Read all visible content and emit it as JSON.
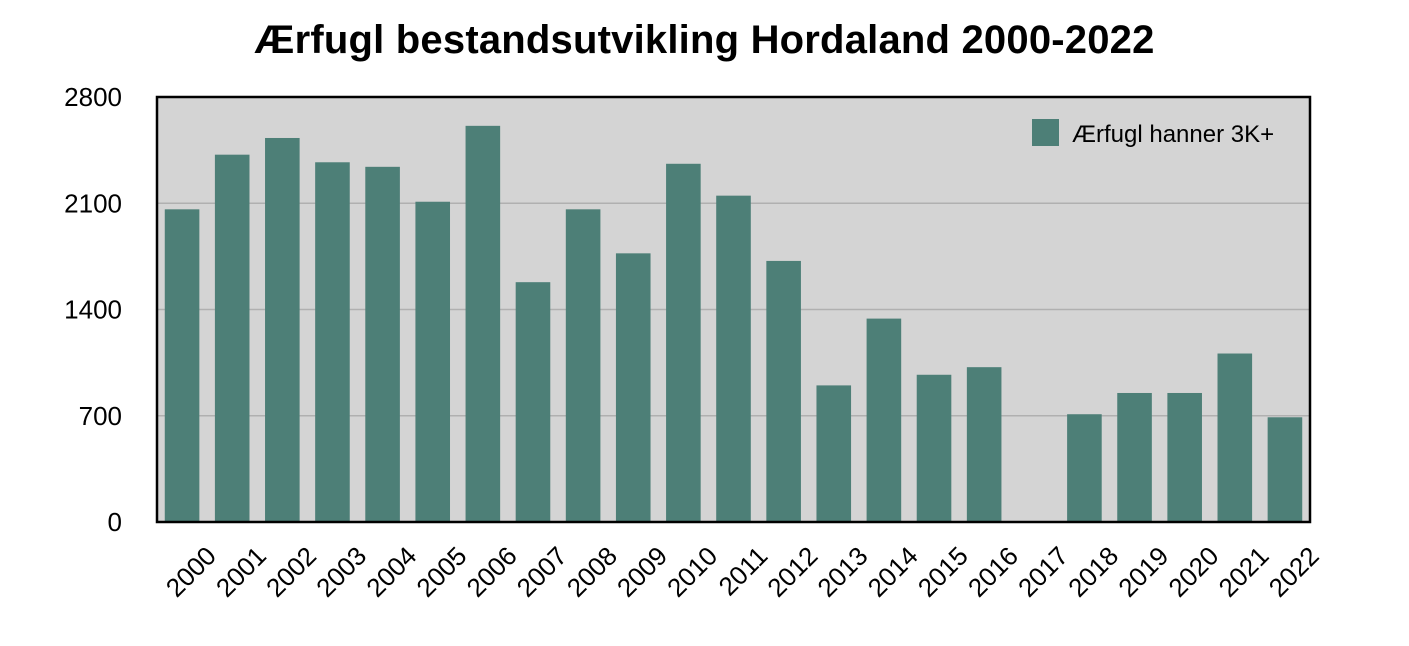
{
  "chart_data": {
    "type": "bar",
    "title": "Ærfugl bestandsutvikling Hordaland 2000-2022",
    "xlabel": "",
    "ylabel": "",
    "categories": [
      "2000",
      "2001",
      "2002",
      "2003",
      "2004",
      "2005",
      "2006",
      "2007",
      "2008",
      "2009",
      "2010",
      "2011",
      "2012",
      "2013",
      "2014",
      "2015",
      "2016",
      "2017",
      "2018",
      "2019",
      "2020",
      "2021",
      "2022"
    ],
    "series": [
      {
        "name": "Ærfugl hanner 3K+",
        "color": "#4d7f77",
        "values": [
          2060,
          2420,
          2530,
          2370,
          2340,
          2110,
          2610,
          1580,
          2060,
          1770,
          2360,
          2150,
          1720,
          900,
          1340,
          970,
          1020,
          null,
          710,
          850,
          850,
          1110,
          690
        ]
      }
    ],
    "ylim": [
      0,
      2800
    ],
    "yticks": [
      0,
      700,
      1400,
      2100,
      2800
    ],
    "grid": true,
    "legend_position": "top-right",
    "plot_background": "#d4d4d4"
  }
}
